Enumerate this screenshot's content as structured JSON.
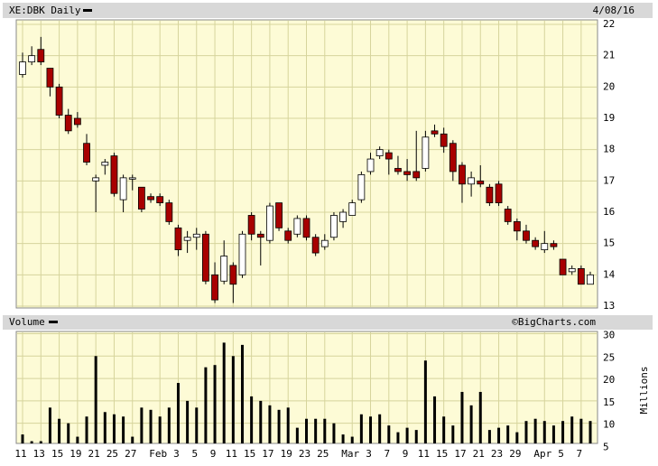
{
  "chart_data": [
    {
      "type": "candlestick",
      "title": "XE:DBK Daily",
      "date": "4/08/16",
      "categories": [
        "11",
        null,
        "13",
        null,
        "15",
        null,
        "19",
        null,
        "21",
        null,
        "25",
        null,
        "27",
        null,
        null,
        "Feb",
        null,
        "3",
        null,
        "5",
        null,
        "9",
        null,
        "11",
        null,
        "15",
        null,
        "17",
        null,
        "19",
        null,
        "23",
        null,
        "25",
        null,
        null,
        "Mar",
        null,
        "3",
        null,
        "7",
        null,
        "9",
        null,
        "11",
        null,
        "15",
        null,
        "17",
        null,
        "21",
        null,
        "23",
        null,
        "29",
        null,
        null,
        "Apr",
        null,
        "5",
        null,
        "7",
        null
      ],
      "open": [
        20.4,
        20.8,
        21.2,
        20.6,
        20.0,
        19.1,
        19.0,
        18.2,
        17.0,
        17.5,
        17.8,
        16.4,
        17.1,
        16.8,
        16.5,
        16.5,
        16.3,
        15.5,
        15.1,
        15.2,
        15.3,
        14.0,
        13.8,
        14.3,
        14.0,
        15.9,
        15.3,
        15.1,
        16.3,
        15.4,
        15.3,
        15.8,
        15.2,
        14.9,
        15.2,
        15.7,
        15.9,
        16.4,
        17.3,
        17.8,
        17.9,
        17.4,
        17.3,
        17.3,
        17.4,
        18.6,
        18.5,
        18.2,
        17.5,
        16.9,
        17.0,
        16.8,
        16.9,
        16.1,
        15.7,
        15.4,
        15.1,
        14.8,
        15.0,
        14.5,
        14.1,
        14.2,
        13.7
      ],
      "high": [
        21.1,
        21.3,
        21.6,
        20.6,
        20.1,
        19.3,
        19.2,
        18.5,
        17.2,
        17.7,
        17.9,
        17.2,
        17.2,
        16.8,
        16.6,
        16.6,
        16.4,
        15.6,
        15.4,
        15.5,
        15.4,
        14.4,
        15.1,
        14.4,
        15.4,
        16.0,
        15.4,
        16.3,
        16.3,
        15.5,
        15.9,
        15.9,
        15.3,
        15.3,
        16.0,
        16.1,
        16.4,
        17.3,
        17.9,
        18.1,
        18.0,
        17.8,
        17.7,
        18.6,
        18.6,
        18.8,
        18.7,
        18.3,
        17.6,
        17.3,
        17.5,
        16.9,
        17.0,
        16.2,
        15.8,
        15.6,
        15.2,
        15.4,
        15.1,
        14.5,
        14.3,
        14.3,
        14.1
      ],
      "low": [
        20.3,
        20.7,
        20.7,
        19.7,
        19.0,
        18.5,
        18.7,
        17.5,
        16.0,
        17.2,
        16.5,
        16.0,
        16.7,
        16.0,
        16.3,
        16.2,
        15.6,
        14.6,
        14.7,
        14.8,
        13.7,
        13.1,
        13.7,
        13.1,
        13.9,
        15.1,
        14.3,
        15.0,
        15.4,
        15.0,
        15.2,
        15.1,
        14.6,
        14.8,
        15.1,
        15.5,
        15.9,
        16.3,
        17.2,
        17.7,
        17.2,
        17.2,
        17.0,
        17.0,
        17.3,
        18.4,
        17.9,
        17.0,
        16.3,
        16.5,
        16.8,
        16.2,
        16.2,
        15.6,
        15.1,
        15.0,
        14.8,
        14.7,
        14.8,
        14.0,
        14.0,
        13.7,
        13.7
      ],
      "close": [
        20.8,
        21.0,
        20.8,
        20.0,
        19.1,
        18.6,
        18.8,
        17.6,
        17.1,
        17.6,
        16.6,
        17.1,
        17.1,
        16.1,
        16.4,
        16.3,
        15.7,
        14.8,
        15.2,
        15.3,
        13.8,
        13.2,
        14.6,
        13.7,
        15.3,
        15.3,
        15.2,
        16.2,
        15.5,
        15.1,
        15.8,
        15.2,
        14.7,
        15.1,
        15.9,
        16.0,
        16.3,
        17.2,
        17.7,
        18.0,
        17.7,
        17.3,
        17.2,
        17.1,
        18.4,
        18.5,
        18.1,
        17.3,
        16.9,
        17.1,
        16.9,
        16.3,
        16.3,
        15.7,
        15.4,
        15.1,
        14.9,
        15.0,
        14.9,
        14.0,
        14.2,
        13.7,
        14.0
      ],
      "up_color": "#ffffff",
      "down_color": "#a80000",
      "ylim": [
        13,
        22
      ],
      "yticks": [
        13,
        14,
        15,
        16,
        17,
        18,
        19,
        20,
        21,
        22
      ],
      "grid": true
    },
    {
      "type": "bar",
      "title": "Volume",
      "source": "©BigCharts.com",
      "y_label": "Millions",
      "values": [
        7.5,
        6,
        6,
        13.5,
        11,
        10,
        7,
        11.5,
        25,
        12.5,
        12,
        11.5,
        7,
        13.5,
        13,
        11.5,
        13.5,
        19,
        15,
        13.5,
        22.5,
        23,
        28,
        25,
        27.5,
        16,
        15,
        14,
        13,
        13.5,
        9,
        11,
        11,
        11,
        10,
        7.5,
        7,
        12,
        11.5,
        12,
        9.5,
        8,
        9,
        8.5,
        24,
        16,
        11.5,
        9.5,
        17,
        14,
        17,
        8.5,
        9,
        9.5,
        8,
        10.5,
        11,
        10.5,
        9.5,
        10.5,
        11.5,
        11,
        10.5
      ],
      "color": "#000000",
      "ylim": [
        5.5,
        30.5
      ],
      "yticks": [
        5,
        10,
        15,
        20,
        25,
        30
      ],
      "grid": true
    }
  ]
}
